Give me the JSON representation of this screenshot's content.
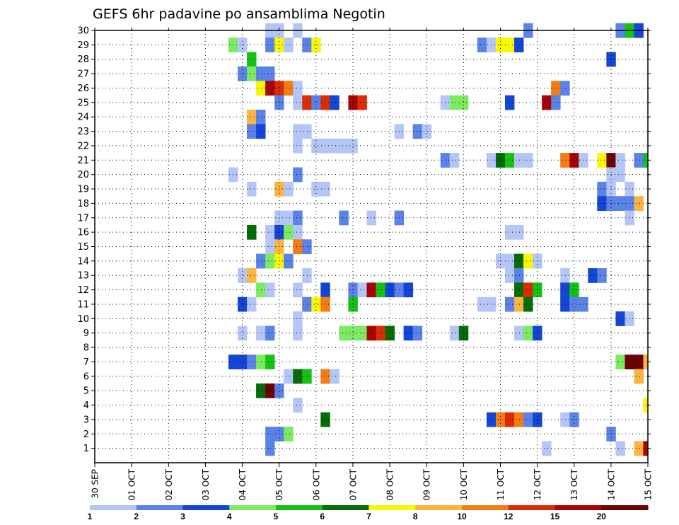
{
  "chart_data": {
    "type": "heatmap",
    "title": "GEFS 6hr padavine po ansamblima Negotin",
    "y_ticks": [
      "1",
      "2",
      "3",
      "4",
      "5",
      "6",
      "7",
      "8",
      "9",
      "10",
      "11",
      "12",
      "13",
      "14",
      "15",
      "16",
      "17",
      "18",
      "19",
      "20",
      "21",
      "22",
      "23",
      "24",
      "25",
      "26",
      "27",
      "28",
      "29",
      "30"
    ],
    "x_ticks": [
      "30 SEP",
      "01 OCT",
      "02 OCT",
      "03 OCT",
      "04 OCT",
      "05 OCT",
      "06 OCT",
      "07 OCT",
      "08 OCT",
      "09 OCT",
      "10 OCT",
      "11 OCT",
      "12 OCT",
      "13 OCT",
      "14 OCT",
      "15 OCT"
    ],
    "xlim": [
      0,
      15
    ],
    "ylim": [
      0,
      30
    ],
    "time_steps_per_day": 4,
    "grid": true,
    "colorbar": {
      "labels": [
        "1",
        "2",
        "3",
        "4",
        "5",
        "6",
        "7",
        "8",
        "10",
        "12",
        "15",
        "20"
      ],
      "colors": [
        "#b4c6f8",
        "#5a82e8",
        "#1446d6",
        "#7ceb62",
        "#14c214",
        "#066c06",
        "#f8f804",
        "#fcb440",
        "#f47c14",
        "#dc2c04",
        "#a80404",
        "#6c0404"
      ]
    },
    "ensemble_rows": [
      {
        "member": 30,
        "cells": [
          [
            4.75,
            0
          ],
          [
            5,
            0
          ],
          [
            5.5,
            0
          ],
          [
            11.75,
            1
          ],
          [
            14.25,
            1
          ],
          [
            14.5,
            4
          ],
          [
            14.75,
            2
          ]
        ]
      },
      {
        "member": 29,
        "cells": [
          [
            3.75,
            3
          ],
          [
            4,
            0
          ],
          [
            4.75,
            1
          ],
          [
            5,
            6
          ],
          [
            5.25,
            0
          ],
          [
            5.75,
            1
          ],
          [
            6,
            6
          ],
          [
            10.5,
            1
          ],
          [
            10.75,
            0
          ],
          [
            11,
            6
          ],
          [
            11.25,
            6
          ],
          [
            11.5,
            2
          ]
        ]
      },
      {
        "member": 28,
        "cells": [
          [
            4.25,
            4
          ],
          [
            14,
            2
          ]
        ]
      },
      {
        "member": 27,
        "cells": [
          [
            4,
            1
          ],
          [
            4.25,
            3
          ],
          [
            4.5,
            1
          ],
          [
            4.75,
            1
          ]
        ]
      },
      {
        "member": 26,
        "cells": [
          [
            4.5,
            6
          ],
          [
            4.75,
            10
          ],
          [
            5,
            9
          ],
          [
            5.25,
            8
          ],
          [
            5.5,
            0
          ],
          [
            12.5,
            8
          ],
          [
            12.75,
            1
          ]
        ]
      },
      {
        "member": 25,
        "cells": [
          [
            5,
            1
          ],
          [
            5.5,
            0
          ],
          [
            5.75,
            9
          ],
          [
            6,
            1
          ],
          [
            6.25,
            9
          ],
          [
            6.5,
            2
          ],
          [
            7,
            10
          ],
          [
            7.25,
            9
          ],
          [
            9.5,
            0
          ],
          [
            9.75,
            3
          ],
          [
            10,
            3
          ],
          [
            11.25,
            2
          ],
          [
            12.25,
            10
          ],
          [
            12.5,
            1
          ]
        ]
      },
      {
        "member": 24,
        "cells": [
          [
            4.25,
            7
          ],
          [
            4.5,
            1
          ]
        ]
      },
      {
        "member": 23,
        "cells": [
          [
            4.25,
            1
          ],
          [
            4.5,
            2
          ],
          [
            5.5,
            0
          ],
          [
            5.75,
            0
          ],
          [
            8.25,
            0
          ],
          [
            8.75,
            1
          ],
          [
            9,
            0
          ]
        ]
      },
      {
        "member": 22,
        "cells": [
          [
            5.5,
            0
          ],
          [
            6,
            0
          ],
          [
            6.25,
            0
          ],
          [
            6.5,
            0
          ],
          [
            6.75,
            0
          ],
          [
            7,
            0
          ]
        ]
      },
      {
        "member": 21,
        "cells": [
          [
            9.5,
            1
          ],
          [
            9.75,
            0
          ],
          [
            10.75,
            0
          ],
          [
            11,
            5
          ],
          [
            11.25,
            4
          ],
          [
            11.5,
            0
          ],
          [
            11.75,
            0
          ],
          [
            12.75,
            8
          ],
          [
            13,
            10
          ],
          [
            13.25,
            0
          ],
          [
            13.75,
            6
          ],
          [
            14,
            11
          ],
          [
            14.25,
            0
          ],
          [
            14.75,
            1
          ],
          [
            15,
            4
          ]
        ]
      },
      {
        "member": 20,
        "cells": [
          [
            3.75,
            0
          ],
          [
            5.5,
            1
          ],
          [
            14,
            0
          ],
          [
            14.25,
            0
          ]
        ]
      },
      {
        "member": 19,
        "cells": [
          [
            4.25,
            0
          ],
          [
            5,
            7
          ],
          [
            5.25,
            0
          ],
          [
            6,
            0
          ],
          [
            6.25,
            0
          ],
          [
            13.75,
            1
          ],
          [
            14,
            0
          ],
          [
            14.5,
            0
          ]
        ]
      },
      {
        "member": 18,
        "cells": [
          [
            13.75,
            2
          ],
          [
            14,
            1
          ],
          [
            14.25,
            1
          ],
          [
            14.5,
            1
          ],
          [
            14.75,
            7
          ]
        ]
      },
      {
        "member": 17,
        "cells": [
          [
            5,
            0
          ],
          [
            5.25,
            0
          ],
          [
            5.5,
            1
          ],
          [
            6.75,
            1
          ],
          [
            7.5,
            0
          ],
          [
            8.25,
            1
          ],
          [
            14.5,
            0
          ]
        ]
      },
      {
        "member": 16,
        "cells": [
          [
            4.25,
            5
          ],
          [
            4.75,
            0
          ],
          [
            5,
            2
          ],
          [
            5.25,
            3
          ],
          [
            5.5,
            0
          ],
          [
            11.25,
            0
          ],
          [
            11.5,
            0
          ]
        ]
      },
      {
        "member": 15,
        "cells": [
          [
            4.75,
            0
          ],
          [
            5,
            7
          ],
          [
            5.5,
            8
          ],
          [
            5.75,
            1
          ]
        ]
      },
      {
        "member": 14,
        "cells": [
          [
            4.5,
            1
          ],
          [
            4.75,
            3
          ],
          [
            5,
            6
          ],
          [
            5.25,
            1
          ],
          [
            11,
            0
          ],
          [
            11.25,
            0
          ],
          [
            11.5,
            5
          ],
          [
            11.75,
            6
          ],
          [
            12,
            0
          ]
        ]
      },
      {
        "member": 13,
        "cells": [
          [
            4,
            0
          ],
          [
            4.25,
            7
          ],
          [
            5.75,
            0
          ],
          [
            11.25,
            0
          ],
          [
            11.5,
            1
          ],
          [
            12.75,
            0
          ],
          [
            13.5,
            2
          ],
          [
            13.75,
            1
          ]
        ]
      },
      {
        "member": 12,
        "cells": [
          [
            4.5,
            3
          ],
          [
            4.75,
            0
          ],
          [
            5.5,
            0
          ],
          [
            6.25,
            2
          ],
          [
            7,
            1
          ],
          [
            7.25,
            0
          ],
          [
            7.5,
            10
          ],
          [
            7.75,
            4
          ],
          [
            8,
            2
          ],
          [
            8.25,
            1
          ],
          [
            8.5,
            2
          ],
          [
            11.5,
            5
          ],
          [
            11.75,
            9
          ],
          [
            12,
            4
          ],
          [
            12.75,
            2
          ],
          [
            13,
            4
          ]
        ]
      },
      {
        "member": 11,
        "cells": [
          [
            4,
            2
          ],
          [
            4.25,
            0
          ],
          [
            5.75,
            1
          ],
          [
            6,
            6
          ],
          [
            6.25,
            8
          ],
          [
            7,
            4
          ],
          [
            10.5,
            0
          ],
          [
            10.75,
            0
          ],
          [
            11.25,
            1
          ],
          [
            11.5,
            7
          ],
          [
            11.75,
            5
          ],
          [
            12.75,
            2
          ],
          [
            13,
            1
          ],
          [
            13.25,
            1
          ]
        ]
      },
      {
        "member": 10,
        "cells": [
          [
            5.5,
            0
          ],
          [
            14.25,
            2
          ],
          [
            14.5,
            0
          ]
        ]
      },
      {
        "member": 9,
        "cells": [
          [
            4,
            0
          ],
          [
            4.5,
            0
          ],
          [
            4.75,
            1
          ],
          [
            5.5,
            0
          ],
          [
            6.75,
            3
          ],
          [
            7,
            3
          ],
          [
            7.25,
            3
          ],
          [
            7.5,
            10
          ],
          [
            7.75,
            9
          ],
          [
            8,
            5
          ],
          [
            8.5,
            2
          ],
          [
            8.75,
            1
          ],
          [
            9.75,
            0
          ],
          [
            10,
            5
          ],
          [
            11.5,
            0
          ],
          [
            11.75,
            3
          ],
          [
            12,
            2
          ]
        ]
      },
      {
        "member": 7,
        "cells": [
          [
            3.75,
            2
          ],
          [
            4,
            2
          ],
          [
            4.25,
            1
          ],
          [
            4.5,
            3
          ],
          [
            4.75,
            4
          ],
          [
            14.25,
            3
          ],
          [
            14.5,
            11
          ],
          [
            14.75,
            11
          ],
          [
            15,
            7
          ]
        ]
      },
      {
        "member": 6,
        "cells": [
          [
            5.25,
            0
          ],
          [
            5.5,
            5
          ],
          [
            5.75,
            4
          ],
          [
            6.25,
            8
          ],
          [
            6.5,
            0
          ],
          [
            14.75,
            7
          ]
        ]
      },
      {
        "member": 5,
        "cells": [
          [
            4.5,
            5
          ],
          [
            4.75,
            11
          ],
          [
            5,
            1
          ]
        ]
      },
      {
        "member": 4,
        "cells": [
          [
            5.5,
            0
          ],
          [
            15,
            6
          ]
        ]
      },
      {
        "member": 3,
        "cells": [
          [
            6.25,
            5
          ],
          [
            10.75,
            2
          ],
          [
            11,
            8
          ],
          [
            11.25,
            9
          ],
          [
            11.5,
            8
          ],
          [
            11.75,
            1
          ],
          [
            12,
            2
          ],
          [
            12.75,
            0
          ],
          [
            13,
            1
          ]
        ]
      },
      {
        "member": 2,
        "cells": [
          [
            4.75,
            1
          ],
          [
            5,
            1
          ],
          [
            5.25,
            3
          ],
          [
            14,
            1
          ]
        ]
      },
      {
        "member": 1,
        "cells": [
          [
            4.75,
            1
          ],
          [
            12.25,
            0
          ],
          [
            14.25,
            0
          ],
          [
            14.75,
            7
          ],
          [
            15,
            10
          ]
        ]
      }
    ]
  }
}
